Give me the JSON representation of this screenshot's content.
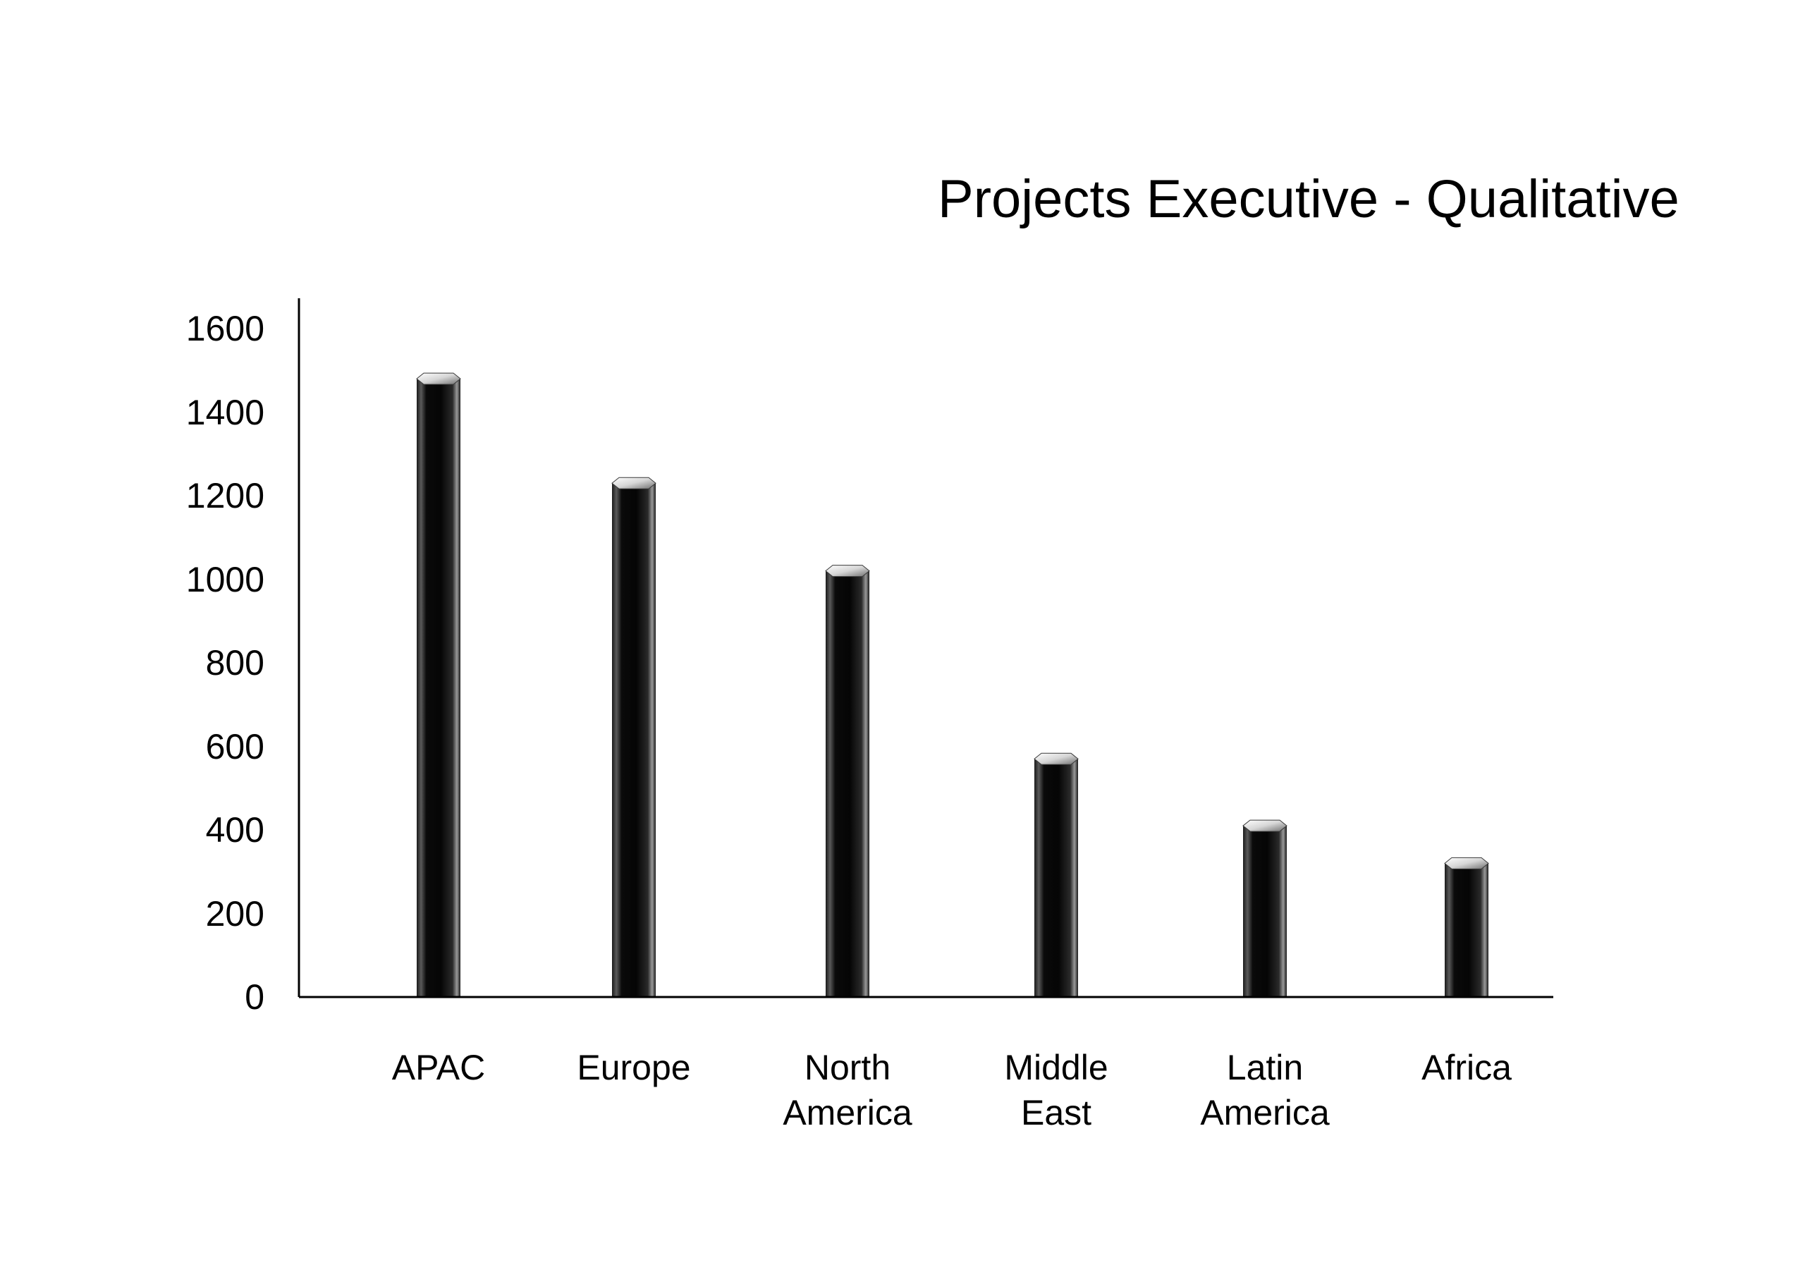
{
  "chart_data": {
    "type": "bar",
    "title": "Projects Executive - Qualitative",
    "categories": [
      [
        "APAC"
      ],
      [
        "Europe"
      ],
      [
        "North",
        "America"
      ],
      [
        "Middle",
        "East"
      ],
      [
        "Latin",
        "America"
      ],
      [
        "Africa"
      ]
    ],
    "values": [
      1480,
      1230,
      1020,
      570,
      410,
      320
    ],
    "ylim": [
      0,
      1600
    ],
    "yticks": [
      0,
      200,
      400,
      600,
      800,
      1000,
      1200,
      1400,
      1600
    ],
    "grid": false,
    "legend": "none",
    "colors": {
      "bar_dark": "#0a0a0a",
      "bar_mid": "#3a3a3a",
      "bar_highlight": "#8a8a8a",
      "bar_cap_light": "#f2f2f2",
      "axis": "#000000"
    }
  }
}
